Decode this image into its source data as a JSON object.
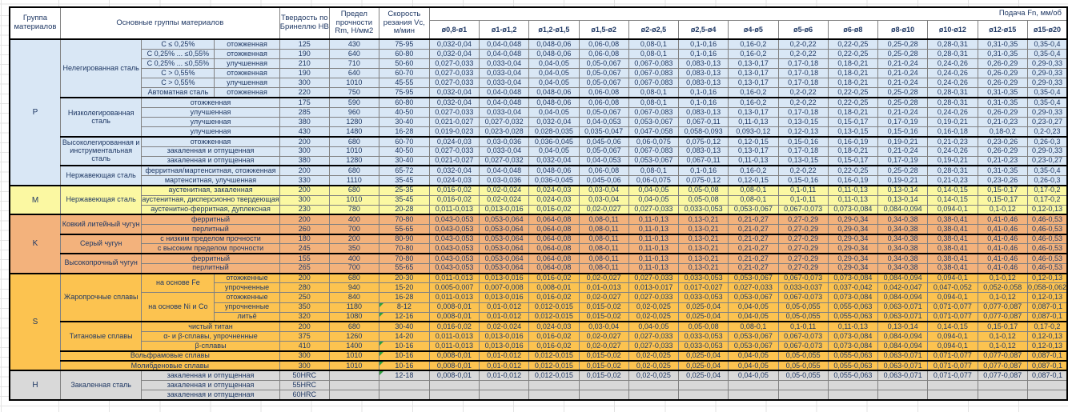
{
  "colors": {
    "text": "#1F3864",
    "comment_marker_green": "#2EA03C",
    "thick_border": "#000000",
    "cell_border": "#818181",
    "group_P": "#D9E7F5",
    "group_M": "#FBF8A2",
    "group_K": "#F3B27C",
    "group_S": "#FCC350",
    "group_H": "#D9D9D9"
  },
  "header": {
    "group": "Группа материалов",
    "main_groups": "Основные группы материалов",
    "hardness": "Твердость по Бринеллю HB",
    "strength": "Предел прочности Rm, Н/мм2",
    "speed": "Скорость резания Vc, м/мин",
    "feed": "Подача Fn, мм/об",
    "diameters": [
      "ø0,8-ø1",
      "ø1-ø1,2",
      "ø1,2-ø1,5",
      "ø1,5-ø2",
      "ø2-ø2,5",
      "ø2,5-ø4",
      "ø4-ø5",
      "ø5-ø6",
      "ø6-ø8",
      "ø8-ø10",
      "ø10-ø12",
      "ø12-ø15",
      "ø15-ø20"
    ]
  },
  "feeds": {
    "A": [
      "0,032-0,04",
      "0,04-0,048",
      "0,048-0,06",
      "0,06-0,08",
      "0,08-0,1",
      "0,1-0,16",
      "0,16-0,2",
      "0,2-0,22",
      "0,22-0,25",
      "0,25-0,28",
      "0,28-0,31",
      "0,31-0,35",
      "0,35-0,4"
    ],
    "B": [
      "0,027-0,033",
      "0,033-0,04",
      "0,04-0,05",
      "0,05-0,067",
      "0,067-0,083",
      "0,083-0,13",
      "0,13-0,17",
      "0,17-0,18",
      "0,18-0,21",
      "0,21-0,24",
      "0,24-0,26",
      "0,26-0,29",
      "0,29-0,33"
    ],
    "C": [
      "0,021-0,027",
      "0,027-0,032",
      "0,032-0,04",
      "0,04-0,053",
      "0,053-0,067",
      "0,067-0,11",
      "0,11-0,13",
      "0,13-0,15",
      "0,15-0,17",
      "0,17-0,19",
      "0,19-0,21",
      "0,21-0,23",
      "0,23-0,27"
    ],
    "D": [
      "0,024-0,03",
      "0,03-0,036",
      "0,036-0,045",
      "0,045-0,06",
      "0,06-0,075",
      "0,075-0,12",
      "0,12-0,15",
      "0,15-0,16",
      "0,16-0,19",
      "0,19-0,21",
      "0,21-0,23",
      "0,23-0,26",
      "0,26-0,3"
    ],
    "E": [
      "0,019-0,023",
      "0,023-0,028",
      "0,028-0,035",
      "0,035-0,047",
      "0,047-0,058",
      "0,058-0,093",
      "0,093-0,12",
      "0,12-0,13",
      "0,13-0,15",
      "0,15-0,16",
      "0,16-0,18",
      "0,18-0,2",
      "0,2-0,23"
    ],
    "F": [
      "0,016-0,02",
      "0,02-0,024",
      "0,024-0,03",
      "0,03-0,04",
      "0,04-0,05",
      "0,05-0,08",
      "0,08-0,1",
      "0,1-0,11",
      "0,11-0,13",
      "0,13-0,14",
      "0,14-0,15",
      "0,15-0,17",
      "0,17-0,2"
    ],
    "G": [
      "0,011-0,013",
      "0,013-0,016",
      "0,016-0,02",
      "0,02-0,027",
      "0,027-0,033",
      "0,033-0,053",
      "0,053-0,067",
      "0,067-0,073",
      "0,073-0,084",
      "0,084-0,094",
      "0,094-0,1",
      "0,1-0,12",
      "0,12-0,13"
    ],
    "H": [
      "0,043-0,053",
      "0,053-0,064",
      "0,064-0,08",
      "0,08-0,11",
      "0,11-0,13",
      "0,13-0,21",
      "0,21-0,27",
      "0,27-0,29",
      "0,29-0,34",
      "0,34-0,38",
      "0,38-0,41",
      "0,41-0,46",
      "0,46-0,53"
    ],
    "I": [
      "0,008-0,01",
      "0,01-0,012",
      "0,012-0,015",
      "0,015-0,02",
      "0,02-0,025",
      "0,025-0,04",
      "0,04-0,05",
      "0,05-0,055",
      "0,055-0,063",
      "0,063-0,071",
      "0,071-0,077",
      "0,077-0,087",
      "0,087-0,1"
    ],
    "J": [
      "0,005-0,007",
      "0,007-0,008",
      "0,008-0,01",
      "0,01-0,013",
      "0,013-0,017",
      "0,017-0,027",
      "0,027-0,033",
      "0,033-0,037",
      "0,037-0,042",
      "0,042-0,047",
      "0,047-0,052",
      "0,052-0,058",
      "0,058-0,062"
    ],
    "NONE": [
      "",
      "",
      "",
      "",
      "",
      "",
      "",
      "",
      "",
      "",
      "",
      "",
      ""
    ]
  },
  "groups": [
    {
      "letter": "P",
      "color": "#D9E7F5",
      "rows": [
        {
          "lead": [
            {
              "t": "Нелегированная сталь",
              "rs": 6
            },
            {
              "t": "C ≤ 0,25%"
            },
            {
              "t": "отожженная"
            }
          ],
          "hb": "125",
          "rm": "430",
          "vc": "75-95",
          "f": "A"
        },
        {
          "lead": [
            {
              "t": "C 0,25% ... ≤0,55%"
            },
            {
              "t": "отожженная"
            }
          ],
          "hb": "190",
          "rm": "640",
          "vc": "60-80",
          "f": "A"
        },
        {
          "lead": [
            {
              "t": "C 0,25% ... ≤0,55%"
            },
            {
              "t": "улучшенная"
            }
          ],
          "hb": "210",
          "rm": "710",
          "vc": "50-60",
          "f": "B"
        },
        {
          "lead": [
            {
              "t": "C > 0,55%"
            },
            {
              "t": "отожженная"
            }
          ],
          "hb": "190",
          "rm": "640",
          "vc": "60-70",
          "f": "B"
        },
        {
          "lead": [
            {
              "t": "C > 0,55%"
            },
            {
              "t": "улучшенная"
            }
          ],
          "hb": "300",
          "rm": "1010",
          "vc": "45-55",
          "f": "B"
        },
        {
          "lead": [
            {
              "t": "Автоматная сталь"
            },
            {
              "t": "отожженная"
            }
          ],
          "hb": "220",
          "rm": "750",
          "vc": "75-95",
          "f": "A"
        },
        {
          "bt": true,
          "lead": [
            {
              "t": "Низколегированная сталь",
              "rs": 4
            },
            {
              "t": "отожженная",
              "cs": 2
            }
          ],
          "hb": "175",
          "rm": "590",
          "vc": "60-80",
          "f": "A"
        },
        {
          "lead": [
            {
              "t": "улучшенная",
              "cs": 2
            }
          ],
          "hb": "285",
          "rm": "960",
          "vc": "40-50",
          "f": "B"
        },
        {
          "lead": [
            {
              "t": "улучшенная",
              "cs": 2
            }
          ],
          "hb": "380",
          "rm": "1280",
          "vc": "30-40",
          "f": "C"
        },
        {
          "lead": [
            {
              "t": "улучшенная",
              "cs": 2
            }
          ],
          "hb": "430",
          "rm": "1480",
          "vc": "16-28",
          "f": "E"
        },
        {
          "bt": true,
          "lead": [
            {
              "t": "Высоколегированная и инструментальная сталь",
              "rs": 3
            },
            {
              "t": "отожженная",
              "cs": 2
            }
          ],
          "hb": "200",
          "rm": "680",
          "vc": "60-70",
          "f": "D"
        },
        {
          "lead": [
            {
              "t": "закаленная и отпущенная",
              "cs": 2
            }
          ],
          "hb": "300",
          "rm": "1010",
          "vc": "40-50",
          "f": "B"
        },
        {
          "lead": [
            {
              "t": "закаленная и отпущенная",
              "cs": 2
            }
          ],
          "hb": "380",
          "rm": "1280",
          "vc": "30-40",
          "f": "C"
        },
        {
          "bt": true,
          "lead": [
            {
              "t": "Нержавеющая сталь",
              "rs": 2
            },
            {
              "t": "ферритная/мартенситная, отожженная",
              "cs": 2
            }
          ],
          "hb": "200",
          "rm": "680",
          "vc": "65-72",
          "f": "A"
        },
        {
          "lead": [
            {
              "t": "мартенситная, улучшенная",
              "cs": 2
            }
          ],
          "hb": "330",
          "rm": "1110",
          "vc": "35-45",
          "f": "D"
        }
      ]
    },
    {
      "letter": "M",
      "color": "#FBF8A2",
      "rows": [
        {
          "bt": true,
          "lead": [
            {
              "t": "Нержавеющая сталь",
              "rs": 3
            },
            {
              "t": "аустенитная, закаленная",
              "cs": 2
            }
          ],
          "hb": "200",
          "rm": "680",
          "vc": "25-35",
          "f": "F"
        },
        {
          "lead": [
            {
              "t": "аустенитная, дисперсионно твердеющая",
              "cs": 2
            }
          ],
          "hb": "300",
          "rm": "1010",
          "vc": "35-45",
          "f": "F"
        },
        {
          "lead": [
            {
              "t": "аустенитно-ферритная, дуплексная",
              "cs": 2
            }
          ],
          "hb": "230",
          "rm": "780",
          "vc": "20-28",
          "f": "G"
        }
      ]
    },
    {
      "letter": "K",
      "color": "#F3B27C",
      "rows": [
        {
          "bt": true,
          "lead": [
            {
              "t": "Ковкий литейный чугун",
              "rs": 2
            },
            {
              "t": "ферритный",
              "cs": 2
            }
          ],
          "hb": "200",
          "rm": "400",
          "vc": "70-80",
          "f": "H"
        },
        {
          "lead": [
            {
              "t": "перлитный",
              "cs": 2
            }
          ],
          "hb": "260",
          "rm": "700",
          "vc": "55-65",
          "f": "H"
        },
        {
          "bt": true,
          "lead": [
            {
              "t": "Серый чугун",
              "rs": 2
            },
            {
              "t": "с низким пределом прочности",
              "cs": 2
            }
          ],
          "hb": "180",
          "rm": "200",
          "vc": "80-90",
          "f": "H"
        },
        {
          "lead": [
            {
              "t": "с высоким пределом прочности",
              "cs": 2
            }
          ],
          "hb": "245",
          "rm": "350",
          "vc": "70-80",
          "f": "H"
        },
        {
          "bt": true,
          "lead": [
            {
              "t": "Высокопрочный чугун",
              "rs": 2
            },
            {
              "t": "ферритный",
              "cs": 2
            }
          ],
          "hb": "155",
          "rm": "400",
          "vc": "70-80",
          "f": "H"
        },
        {
          "lead": [
            {
              "t": "перлитный",
              "cs": 2
            }
          ],
          "hb": "265",
          "rm": "700",
          "vc": "55-65",
          "f": "H"
        }
      ]
    },
    {
      "letter": "S",
      "color": "#FCC350",
      "rows": [
        {
          "bt": true,
          "lead": [
            {
              "t": "Жаропрочные сплавы",
              "rs": 5
            },
            {
              "t": "на основе Fe",
              "rs": 2
            },
            {
              "t": "отожженные"
            }
          ],
          "hb": "200",
          "rm": "680",
          "vc": "20-30",
          "f": "G"
        },
        {
          "lead": [
            {
              "t": "упрочненные"
            }
          ],
          "hb": "280",
          "rm": "940",
          "vc": "15-20",
          "f": "J"
        },
        {
          "lead": [
            {
              "t": "на основе Ni и Co",
              "rs": 3
            },
            {
              "t": "отожженные"
            }
          ],
          "hb": "250",
          "rm": "840",
          "vc": "16-28",
          "f": "G"
        },
        {
          "lead": [
            {
              "t": "упрочненные"
            }
          ],
          "hb": "350",
          "rm": "1180",
          "vc": "8-12",
          "f": "I",
          "c": true
        },
        {
          "lead": [
            {
              "t": "литьё"
            }
          ],
          "hb": "320",
          "rm": "1080",
          "vc": "12-16",
          "f": "I",
          "c": true
        },
        {
          "bt": true,
          "lead": [
            {
              "t": "Титановые сплавы",
              "rs": 3
            },
            {
              "t": "чистый титан",
              "cs": 2
            }
          ],
          "hb": "200",
          "rm": "680",
          "vc": "30-40",
          "f": "F"
        },
        {
          "lead": [
            {
              "t": "α- и β-сплавы, упрочненные",
              "cs": 2
            }
          ],
          "hb": "375",
          "rm": "1260",
          "vc": "14-20",
          "f": "G"
        },
        {
          "lead": [
            {
              "t": "β-сплавы",
              "cs": 2
            }
          ],
          "hb": "410",
          "rm": "1400",
          "vc": "10-16",
          "f": "G",
          "c": true
        },
        {
          "bt": true,
          "lead": [
            {
              "t": "Вольфрамовые сплавы",
              "cs": 3
            }
          ],
          "hb": "300",
          "rm": "1010",
          "vc": "10-16",
          "f": "I",
          "c": true
        },
        {
          "bt": true,
          "lead": [
            {
              "t": "Молибденовые сплавы",
              "cs": 3
            }
          ],
          "hb": "300",
          "rm": "1010",
          "vc": "10-16",
          "f": "I",
          "c": true
        }
      ]
    },
    {
      "letter": "H",
      "color": "#D9D9D9",
      "rows": [
        {
          "bt": true,
          "lead": [
            {
              "t": "Закаленная сталь",
              "rs": 3
            },
            {
              "t": "закаленная и отпущенная",
              "cs": 2
            }
          ],
          "hb": "50HRC",
          "rm": "",
          "vc": "12-18",
          "f": "I",
          "c": true
        },
        {
          "lead": [
            {
              "t": "закаленная и отпущенная",
              "cs": 2
            }
          ],
          "hb": "55HRC",
          "rm": "",
          "vc": "",
          "f": "NONE"
        },
        {
          "lead": [
            {
              "t": "закаленная и отпущенная",
              "cs": 2
            }
          ],
          "hb": "60HRC",
          "rm": "",
          "vc": "",
          "f": "NONE"
        }
      ]
    }
  ]
}
